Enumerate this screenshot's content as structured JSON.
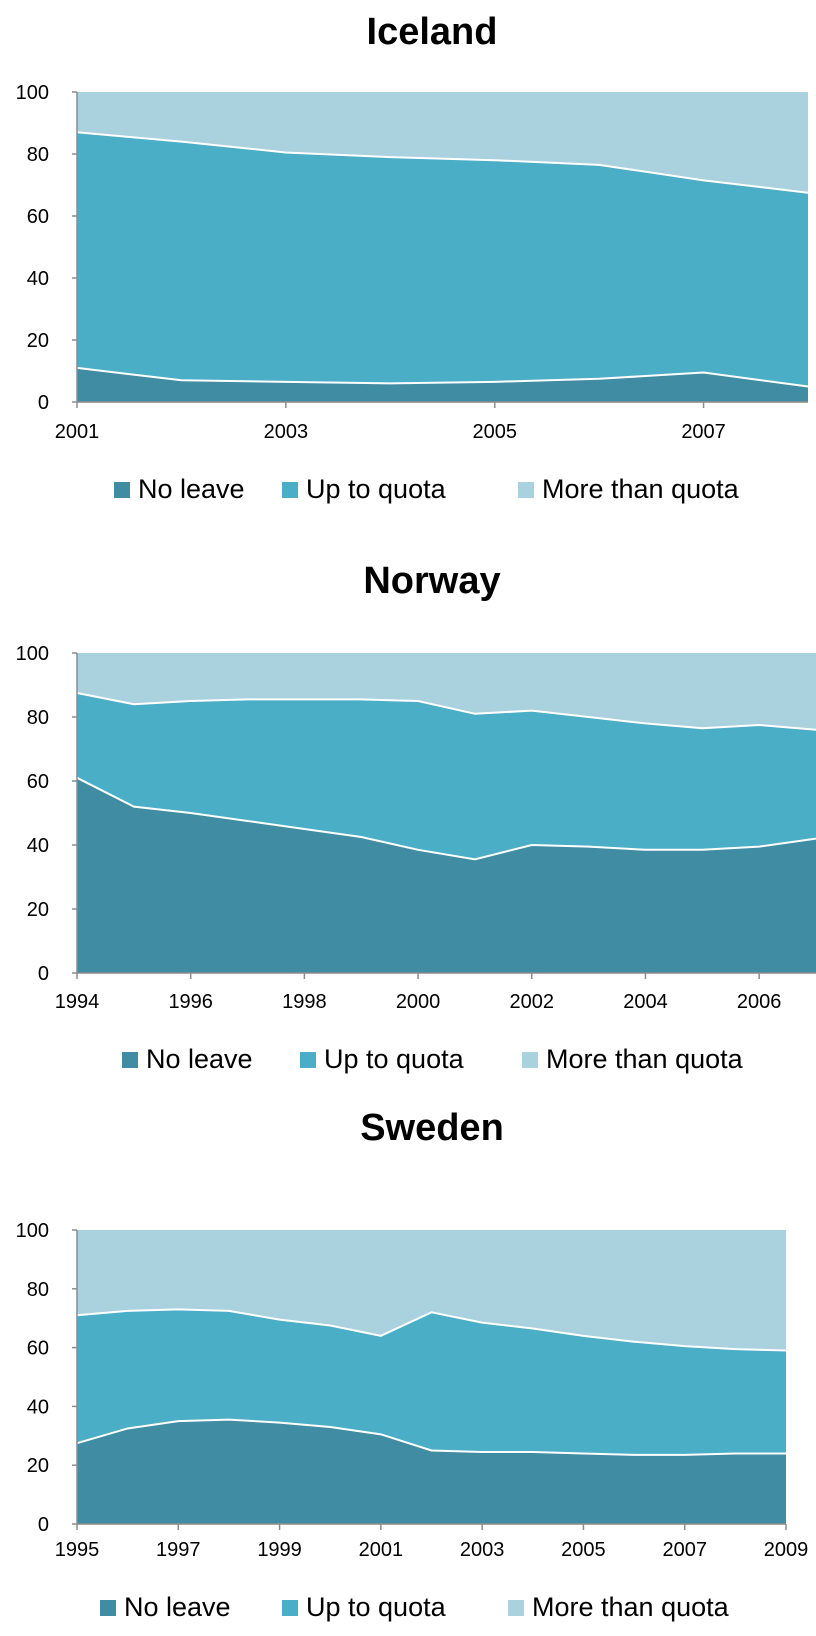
{
  "colors": {
    "no_leave": "#3f8ca3",
    "up_to_quota": "#4aaec6",
    "more_than_quota": "#a9d1de",
    "separator": "#ffffff"
  },
  "chart_data": [
    {
      "type": "area",
      "stacked": true,
      "title": "Iceland",
      "x": [
        2001,
        2002,
        2003,
        2004,
        2005,
        2006,
        2007,
        2008
      ],
      "xticks": [
        "2001",
        "2003",
        "2005",
        "2007"
      ],
      "ylim": [
        0,
        100
      ],
      "yticks": [
        "0",
        "20",
        "40",
        "60",
        "80",
        "100"
      ],
      "series": [
        {
          "name": "No leave",
          "values": [
            11,
            7,
            6.5,
            6,
            6.5,
            7.5,
            9.5,
            5
          ]
        },
        {
          "name": "Up to quota",
          "values": [
            76,
            77,
            74,
            73,
            71.5,
            69,
            62,
            62.5
          ]
        },
        {
          "name": "More than quota",
          "values": [
            13,
            16,
            19.5,
            21,
            22,
            23.5,
            28.5,
            32.5
          ]
        }
      ],
      "legend": "bottom"
    },
    {
      "type": "area",
      "stacked": true,
      "title": "Norway",
      "x": [
        1994,
        1995,
        1996,
        1997,
        1998,
        1999,
        2000,
        2001,
        2002,
        2003,
        2004,
        2005,
        2006,
        2007
      ],
      "xticks": [
        "1994",
        "1996",
        "1998",
        "2000",
        "2002",
        "2004",
        "2006"
      ],
      "ylim": [
        0,
        100
      ],
      "yticks": [
        "0",
        "20",
        "40",
        "60",
        "80",
        "100"
      ],
      "series": [
        {
          "name": "No leave",
          "values": [
            61,
            52,
            50,
            47.5,
            45,
            42.5,
            38.5,
            35.5,
            40,
            39.5,
            38.5,
            38.5,
            39.5,
            42
          ]
        },
        {
          "name": "Up to quota",
          "values": [
            26.5,
            32,
            35,
            38,
            40.5,
            43,
            46.5,
            45.5,
            42,
            40.5,
            39.5,
            38,
            38,
            34
          ]
        },
        {
          "name": "More than quota",
          "values": [
            12.5,
            16,
            15,
            14.5,
            14.5,
            14.5,
            15,
            19,
            18,
            20,
            22,
            23.5,
            22.5,
            24
          ]
        }
      ],
      "legend": "bottom"
    },
    {
      "type": "area",
      "stacked": true,
      "title": "Sweden",
      "x": [
        1995,
        1996,
        1997,
        1998,
        1999,
        2000,
        2001,
        2002,
        2003,
        2004,
        2005,
        2006,
        2007,
        2008,
        2009
      ],
      "xticks": [
        "1995",
        "1997",
        "1999",
        "2001",
        "2003",
        "2005",
        "2007",
        "2009"
      ],
      "ylim": [
        0,
        100
      ],
      "yticks": [
        "0",
        "20",
        "40",
        "60",
        "80",
        "100"
      ],
      "series": [
        {
          "name": "No leave",
          "values": [
            27.5,
            32.5,
            35,
            35.5,
            34.5,
            33,
            30.5,
            25,
            24.5,
            24.5,
            24,
            23.5,
            23.5,
            24,
            24
          ]
        },
        {
          "name": "Up to quota",
          "values": [
            43.5,
            40,
            38,
            37,
            35,
            34.5,
            33.5,
            47,
            44,
            42,
            40,
            38.5,
            37,
            35.5,
            35
          ]
        },
        {
          "name": "More than quota",
          "values": [
            29,
            27.5,
            27,
            27.5,
            30.5,
            32.5,
            36,
            28,
            31.5,
            33.5,
            36,
            38,
            39.5,
            40.5,
            41
          ]
        }
      ],
      "legend": "bottom"
    }
  ]
}
